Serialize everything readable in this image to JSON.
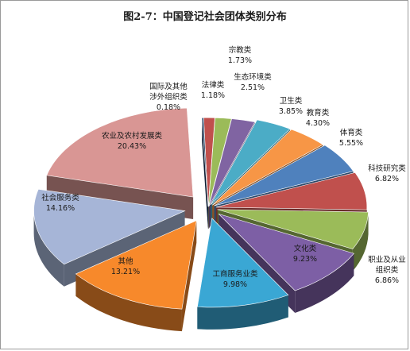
{
  "chart_data": {
    "type": "pie",
    "title": "图2-7：中国登记社会团体类别分布",
    "slices": [
      {
        "name": "国际及其他涉外组织类",
        "value": 0.18,
        "label": "0.18%",
        "color": "#17375e"
      },
      {
        "name": "法律类",
        "value": 1.18,
        "label": "1.18%",
        "color": "#c0504d"
      },
      {
        "name": "宗教类",
        "value": 1.73,
        "label": "1.73%",
        "color": "#9bbb59"
      },
      {
        "name": "生态环境类",
        "value": 2.51,
        "label": "2.51%",
        "color": "#8064a2"
      },
      {
        "name": "卫生类",
        "value": 3.85,
        "label": "3.85%",
        "color": "#4bacc6"
      },
      {
        "name": "教育类",
        "value": 4.3,
        "label": "4.30%",
        "color": "#f79646"
      },
      {
        "name": "体育类",
        "value": 5.55,
        "label": "5.55%",
        "color": "#4f81bd"
      },
      {
        "name": "科技研究类",
        "value": 6.82,
        "label": "6.82%",
        "color": "#c0504d"
      },
      {
        "name": "职业及从业组织类",
        "value": 6.86,
        "label": "6.86%",
        "color": "#9bbb59"
      },
      {
        "name": "文化类",
        "value": 9.23,
        "label": "9.23%",
        "color": "#7d5fa5"
      },
      {
        "name": "工商服务业类",
        "value": 9.98,
        "label": "9.98%",
        "color": "#3aa7d4"
      },
      {
        "name": "其他",
        "value": 13.21,
        "label": "13.21%",
        "color": "#f7892b"
      },
      {
        "name": "社会服务类",
        "value": 14.16,
        "label": "14.16%",
        "color": "#a6b5d7"
      },
      {
        "name": "农业及农村发展类",
        "value": 20.43,
        "label": "20.43%",
        "color": "#d99694"
      }
    ],
    "legend": "none",
    "style": "3d-exploded"
  }
}
